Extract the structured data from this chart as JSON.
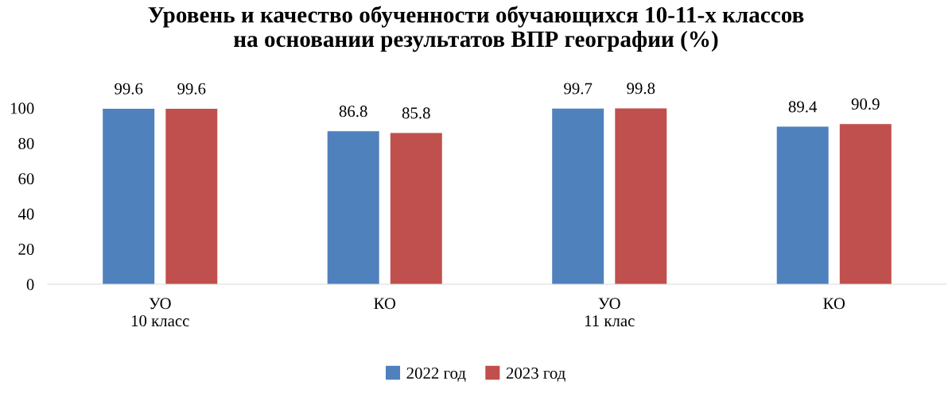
{
  "chart_data": {
    "type": "bar",
    "title": "Уровень и качество обученности обучающихся 10-11-х классов\nна основании результатов ВПР географии (%)",
    "categories": [
      "УО\n10 класс",
      "КО",
      "УО\n11 клас",
      "КО"
    ],
    "series": [
      {
        "name": "2022 год",
        "color": "#4f81bd",
        "values": [
          99.6,
          86.8,
          99.7,
          89.4
        ]
      },
      {
        "name": "2023 год",
        "color": "#c0504d",
        "values": [
          99.6,
          85.8,
          99.8,
          90.9
        ]
      }
    ],
    "ylim": [
      0,
      100
    ],
    "yticks": [
      0,
      20,
      40,
      60,
      80,
      100
    ],
    "grid": false,
    "legend": "bottom",
    "data_labels": true
  }
}
